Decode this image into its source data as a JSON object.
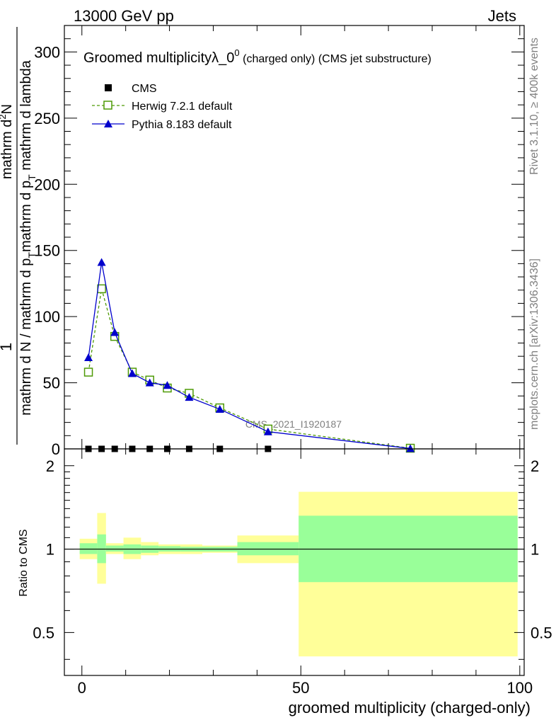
{
  "header": {
    "left": "13000 GeV pp",
    "right": "Jets"
  },
  "side": {
    "rivet": "Rivet 3.1.10, ≥ 400k events",
    "mcplots": "mcplots.cern.ch [arXiv:1306.3436]"
  },
  "chart_data": [
    {
      "type": "line",
      "title": "Groomed multiplicityλ_0",
      "title_sup": "0",
      "title_suffix": "(charged only) (CMS jet substructure)",
      "watermark": "CMS_2021_I1920187",
      "ylabel_numerator": "1",
      "ylabel_numerator_extra": "mathrm d",
      "ylabel_numerator_extra_sup": "2",
      "ylabel_numerator_extra2": "N",
      "ylabel_denominator": "mathrm d N / mathrm d p",
      "ylabel_denominator_sub": "T",
      "ylabel_denominator_tail": "mathrm d p",
      "ylabel_denominator_tail_sub": "T",
      "ylabel_denominator_end": "mathrm d lambda",
      "xlim": [
        -4,
        101
      ],
      "ylim": [
        0,
        320
      ],
      "yticks": [
        0,
        50,
        100,
        150,
        200,
        250,
        300
      ],
      "legend": [
        "CMS",
        "Herwig 7.2.1 default",
        "Pythia 8.183 default"
      ],
      "legend_placement": "top-left",
      "series": [
        {
          "name": "CMS",
          "color": "#000000",
          "x": [
            1.5,
            4.5,
            7.5,
            11.5,
            15.5,
            19.5,
            24.5,
            31.5,
            42.5
          ],
          "y": [
            0,
            0,
            0,
            0,
            0,
            0,
            0,
            0,
            0
          ]
        },
        {
          "name": "Herwig 7.2.1 default",
          "color": "#4e9a06",
          "x": [
            1.5,
            4.5,
            7.5,
            11.5,
            15.5,
            19.5,
            24.5,
            31.5,
            42.5,
            75
          ],
          "y": [
            58,
            121,
            85,
            58,
            52,
            46,
            42,
            31,
            15,
            0.5
          ]
        },
        {
          "name": "Pythia 8.183 default",
          "color": "#0000cc",
          "x": [
            1.5,
            4.5,
            7.5,
            11.5,
            15.5,
            19.5,
            24.5,
            31.5,
            42.5,
            75
          ],
          "y": [
            69,
            141,
            88,
            57,
            50,
            48,
            39,
            30,
            13,
            0.3
          ]
        }
      ]
    },
    {
      "type": "area",
      "ylabel": "Ratio to CMS",
      "xlabel": "groomed multiplicity (charged-only)",
      "xlim": [
        -4,
        101
      ],
      "ylim": [
        0.35,
        2.3
      ],
      "yscale": "log",
      "xticks": [
        0,
        50,
        100
      ],
      "yticks": [
        0.5,
        1,
        2
      ],
      "bins": [
        {
          "x0": -0.5,
          "x1": 3.5,
          "stat_lo": 0.96,
          "stat_hi": 1.05,
          "tot_lo": 0.92,
          "tot_hi": 1.09
        },
        {
          "x0": 3.5,
          "x1": 5.5,
          "stat_lo": 0.89,
          "stat_hi": 1.13,
          "tot_lo": 0.75,
          "tot_hi": 1.35
        },
        {
          "x0": 5.5,
          "x1": 9.5,
          "stat_lo": 0.98,
          "stat_hi": 1.03,
          "tot_lo": 0.96,
          "tot_hi": 1.05
        },
        {
          "x0": 9.5,
          "x1": 13.5,
          "stat_lo": 0.96,
          "stat_hi": 1.04,
          "tot_lo": 0.92,
          "tot_hi": 1.1
        },
        {
          "x0": 13.5,
          "x1": 17.5,
          "stat_lo": 0.97,
          "stat_hi": 1.03,
          "tot_lo": 0.95,
          "tot_hi": 1.06
        },
        {
          "x0": 17.5,
          "x1": 22.5,
          "stat_lo": 0.98,
          "stat_hi": 1.025,
          "tot_lo": 0.96,
          "tot_hi": 1.04
        },
        {
          "x0": 22.5,
          "x1": 27.5,
          "stat_lo": 0.98,
          "stat_hi": 1.02,
          "tot_lo": 0.96,
          "tot_hi": 1.04
        },
        {
          "x0": 27.5,
          "x1": 35.5,
          "stat_lo": 0.98,
          "stat_hi": 1.02,
          "tot_lo": 0.97,
          "tot_hi": 1.03
        },
        {
          "x0": 35.5,
          "x1": 49.5,
          "stat_lo": 0.95,
          "stat_hi": 1.06,
          "tot_lo": 0.89,
          "tot_hi": 1.12
        },
        {
          "x0": 49.5,
          "x1": 99.5,
          "stat_lo": 0.76,
          "stat_hi": 1.32,
          "tot_lo": 0.41,
          "tot_hi": 1.61
        }
      ]
    }
  ]
}
